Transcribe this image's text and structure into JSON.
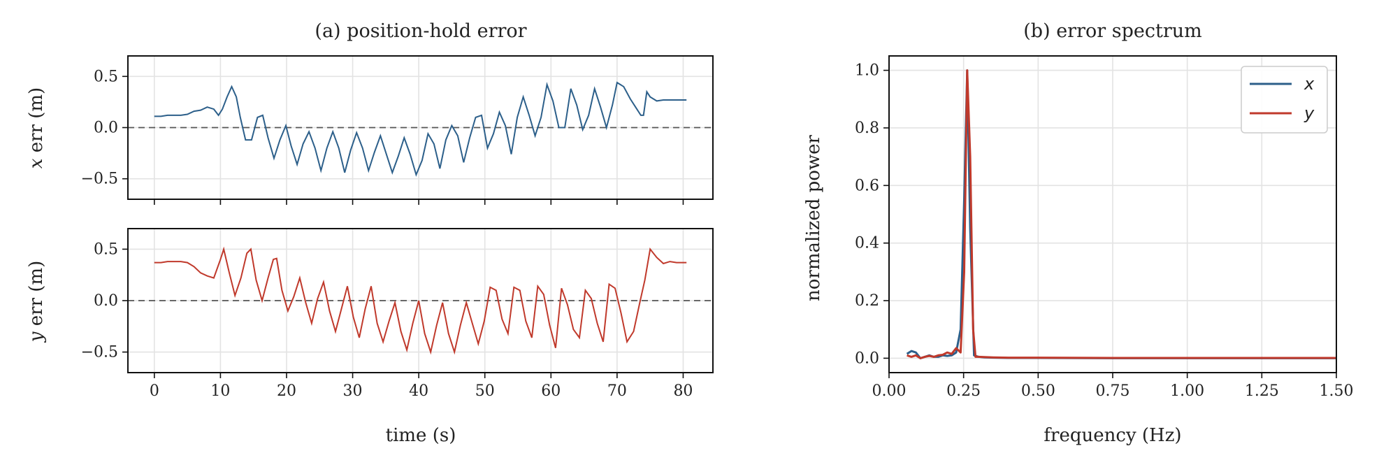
{
  "chart_data": [
    {
      "type": "line",
      "title": "(a) position-hold error",
      "xlabel": "",
      "ylabel": "x err (m)",
      "ylabel_var": "x",
      "ylabel_rest": " err (m)",
      "xlim": [
        -4,
        84.5
      ],
      "ylim": [
        -0.7,
        0.7
      ],
      "yticks": [
        -0.5,
        0.0,
        0.5
      ],
      "ytick_labels": [
        "−0.5",
        "0.0",
        "0.5"
      ],
      "xticks": [
        0,
        10,
        20,
        30,
        40,
        50,
        60,
        70,
        80
      ],
      "grid": true,
      "reference_line": 0.0,
      "color": "#2c5f8a",
      "series": [
        {
          "x": [
            0,
            1,
            2,
            3,
            4,
            5,
            6,
            7,
            8,
            9,
            9.7,
            10.3,
            11,
            11.7,
            12.4,
            13,
            13.8,
            14.7,
            15.6,
            16.4,
            17.2,
            18.1,
            19,
            19.9,
            20.7,
            21.6,
            22.5,
            23.4,
            24.3,
            25.2,
            26.1,
            27,
            27.9,
            28.8,
            29.7,
            30.6,
            31.5,
            32.4,
            33.3,
            34.2,
            35.1,
            36,
            36.9,
            37.8,
            38.7,
            39.6,
            40.5,
            41.4,
            42.3,
            43.2,
            44.1,
            45,
            45.9,
            46.8,
            47.7,
            48.6,
            49.5,
            50.4,
            51.3,
            52.2,
            53.1,
            54,
            54.9,
            55.8,
            56.7,
            57.6,
            58.5,
            59.4,
            60.3,
            61.2,
            62.1,
            63,
            63.9,
            64.8,
            65.7,
            66.6,
            67.5,
            68.4,
            69.3,
            70,
            71,
            72,
            73,
            73.6,
            74,
            74.5,
            75,
            76,
            77,
            78,
            79,
            80.5
          ],
          "y": [
            0.11,
            0.11,
            0.12,
            0.12,
            0.12,
            0.13,
            0.16,
            0.17,
            0.2,
            0.18,
            0.12,
            0.18,
            0.3,
            0.4,
            0.3,
            0.1,
            -0.12,
            -0.12,
            0.1,
            0.12,
            -0.1,
            -0.3,
            -0.12,
            0.02,
            -0.18,
            -0.36,
            -0.16,
            -0.04,
            -0.2,
            -0.42,
            -0.2,
            -0.04,
            -0.2,
            -0.44,
            -0.22,
            -0.05,
            -0.2,
            -0.42,
            -0.24,
            -0.08,
            -0.26,
            -0.44,
            -0.28,
            -0.1,
            -0.26,
            -0.46,
            -0.32,
            -0.06,
            -0.16,
            -0.4,
            -0.12,
            0.02,
            -0.08,
            -0.34,
            -0.1,
            0.1,
            0.12,
            -0.2,
            -0.06,
            0.15,
            0.02,
            -0.26,
            0.1,
            0.3,
            0.12,
            -0.08,
            0.1,
            0.42,
            0.26,
            0.0,
            0.0,
            0.38,
            0.22,
            -0.02,
            0.12,
            0.38,
            0.2,
            0.0,
            0.22,
            0.44,
            0.4,
            0.28,
            0.18,
            0.12,
            0.12,
            0.35,
            0.3,
            0.26,
            0.27,
            0.27,
            0.27,
            0.27
          ]
        }
      ]
    },
    {
      "type": "line",
      "title": "",
      "xlabel": "time (s)",
      "ylabel": "y err (m)",
      "ylabel_var": "y",
      "ylabel_rest": " err (m)",
      "xlim": [
        -4,
        84.5
      ],
      "ylim": [
        -0.7,
        0.7
      ],
      "yticks": [
        -0.5,
        0.0,
        0.5
      ],
      "ytick_labels": [
        "−0.5",
        "0.0",
        "0.5"
      ],
      "xticks": [
        0,
        10,
        20,
        30,
        40,
        50,
        60,
        70,
        80
      ],
      "xtick_labels": [
        "0",
        "10",
        "20",
        "30",
        "40",
        "50",
        "60",
        "70",
        "80"
      ],
      "grid": true,
      "reference_line": 0.0,
      "color": "#c0392b",
      "series": [
        {
          "x": [
            0,
            1,
            2,
            3,
            4,
            5,
            6,
            7,
            8,
            9,
            10,
            10.5,
            11.3,
            12.2,
            13.1,
            14,
            14.6,
            15.4,
            16.3,
            17.2,
            18,
            18.5,
            19.3,
            20.2,
            21.1,
            22,
            22.9,
            23.8,
            24.7,
            25.6,
            26.5,
            27.4,
            28.3,
            29.2,
            30.1,
            31,
            31.9,
            32.8,
            33.7,
            34.6,
            35.5,
            36.4,
            37.3,
            38.2,
            39.1,
            40,
            40.9,
            41.8,
            42.7,
            43.6,
            44.5,
            45.4,
            46.3,
            47.2,
            48.1,
            49,
            49.9,
            50.8,
            51.7,
            52.6,
            53.5,
            54.4,
            55.3,
            56.2,
            57.1,
            58,
            58.9,
            59.8,
            60.7,
            61.6,
            62.5,
            63.4,
            64.3,
            65.2,
            66.1,
            67,
            67.9,
            68.8,
            69.7,
            70.6,
            71.5,
            72.5,
            73.5,
            74.2,
            75,
            76,
            77,
            78,
            79,
            80.5
          ],
          "y": [
            0.37,
            0.37,
            0.38,
            0.38,
            0.38,
            0.37,
            0.33,
            0.27,
            0.24,
            0.22,
            0.4,
            0.5,
            0.28,
            0.05,
            0.22,
            0.46,
            0.5,
            0.2,
            0.0,
            0.22,
            0.4,
            0.41,
            0.1,
            -0.1,
            0.04,
            0.22,
            -0.02,
            -0.22,
            0.02,
            0.18,
            -0.1,
            -0.3,
            -0.08,
            0.14,
            -0.16,
            -0.36,
            -0.08,
            0.14,
            -0.22,
            -0.4,
            -0.2,
            -0.02,
            -0.3,
            -0.48,
            -0.22,
            0.0,
            -0.32,
            -0.5,
            -0.24,
            -0.02,
            -0.32,
            -0.5,
            -0.24,
            -0.02,
            -0.22,
            -0.42,
            -0.2,
            0.13,
            0.1,
            -0.18,
            -0.32,
            0.13,
            0.1,
            -0.2,
            -0.36,
            0.14,
            0.06,
            -0.24,
            -0.46,
            0.12,
            -0.04,
            -0.28,
            -0.36,
            0.1,
            0.02,
            -0.22,
            -0.4,
            0.16,
            0.12,
            -0.12,
            -0.4,
            -0.3,
            0.0,
            0.2,
            0.5,
            0.42,
            0.36,
            0.38,
            0.37,
            0.37
          ]
        }
      ]
    },
    {
      "type": "line",
      "title": "(b) error spectrum",
      "xlabel": "frequency (Hz)",
      "ylabel": "normalized power",
      "xlim": [
        0.0,
        1.5
      ],
      "ylim": [
        -0.05,
        1.05
      ],
      "xticks": [
        0.0,
        0.25,
        0.5,
        0.75,
        1.0,
        1.25,
        1.5
      ],
      "xtick_labels": [
        "0.00",
        "0.25",
        "0.50",
        "0.75",
        "1.00",
        "1.25",
        "1.50"
      ],
      "yticks": [
        0.0,
        0.2,
        0.4,
        0.6,
        0.8,
        1.0
      ],
      "ytick_labels": [
        "0.0",
        "0.2",
        "0.4",
        "0.6",
        "0.8",
        "1.0"
      ],
      "grid": true,
      "legend": {
        "placement": "top-right",
        "entries": [
          "x",
          "y"
        ]
      },
      "series": [
        {
          "name": "x",
          "color": "#2c5f8a",
          "x": [
            0.06,
            0.075,
            0.09,
            0.105,
            0.12,
            0.135,
            0.15,
            0.165,
            0.18,
            0.195,
            0.21,
            0.225,
            0.24,
            0.252,
            0.262,
            0.272,
            0.285,
            0.3,
            0.32,
            0.35,
            0.4,
            0.5,
            0.75,
            1.0,
            1.25,
            1.5
          ],
          "y": [
            0.015,
            0.025,
            0.02,
            0.0,
            0.005,
            0.01,
            0.005,
            0.005,
            0.01,
            0.008,
            0.01,
            0.02,
            0.1,
            0.55,
            1.0,
            0.45,
            0.01,
            0.005,
            0.003,
            0.002,
            0.001,
            0.001,
            0.0,
            0.0,
            0.0,
            0.0
          ]
        },
        {
          "name": "y",
          "color": "#c0392b",
          "x": [
            0.06,
            0.075,
            0.09,
            0.105,
            0.12,
            0.135,
            0.15,
            0.165,
            0.18,
            0.195,
            0.21,
            0.225,
            0.24,
            0.252,
            0.262,
            0.272,
            0.282,
            0.29,
            0.3,
            0.32,
            0.35,
            0.4,
            0.5,
            0.75,
            1.0,
            1.25,
            1.5
          ],
          "y": [
            0.01,
            0.005,
            0.01,
            0.0,
            0.005,
            0.008,
            0.005,
            0.01,
            0.012,
            0.02,
            0.015,
            0.035,
            0.02,
            0.3,
            1.0,
            0.7,
            0.1,
            0.005,
            0.005,
            0.004,
            0.003,
            0.002,
            0.002,
            0.001,
            0.001,
            0.001,
            0.001
          ]
        }
      ]
    }
  ]
}
